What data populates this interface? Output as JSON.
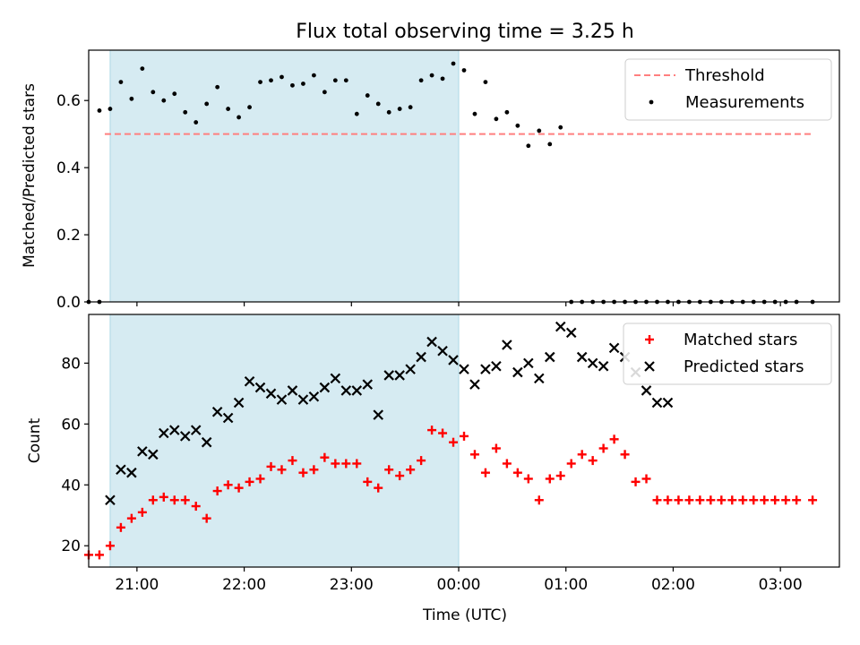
{
  "chart_data": [
    {
      "type": "scatter",
      "title": "Flux total observing time = 3.25 h",
      "xlabel": "",
      "ylabel": "Matched/Predicted stars",
      "xlim": [
        "20:33",
        "03:33"
      ],
      "ylim": [
        0,
        0.75
      ],
      "yticks": [
        "0.0",
        "0.2",
        "0.4",
        "0.6"
      ],
      "observing_window": [
        "20:45",
        "00:00"
      ],
      "threshold": {
        "name": "Threshold",
        "value": 0.5,
        "x_range": [
          "20:42",
          "03:18"
        ],
        "color": "#ff7f7f"
      },
      "series": [
        {
          "name": "Measurements",
          "color": "#000000",
          "x": [
            "20:39",
            "20:45",
            "20:51",
            "20:57",
            "21:03",
            "21:09",
            "21:15",
            "21:21",
            "21:27",
            "21:33",
            "21:39",
            "21:45",
            "21:51",
            "21:57",
            "22:03",
            "22:09",
            "22:15",
            "22:21",
            "22:27",
            "22:33",
            "22:39",
            "22:45",
            "22:51",
            "22:57",
            "23:03",
            "23:09",
            "23:15",
            "23:21",
            "23:27",
            "23:33",
            "23:39",
            "23:45",
            "23:51",
            "23:57",
            "00:03",
            "00:09",
            "00:15",
            "00:21",
            "00:27",
            "00:33",
            "00:39",
            "00:45",
            "00:51",
            "00:57"
          ],
          "y": [
            0.57,
            0.575,
            0.655,
            0.605,
            0.695,
            0.625,
            0.6,
            0.62,
            0.565,
            0.535,
            0.59,
            0.64,
            0.575,
            0.55,
            0.58,
            0.655,
            0.66,
            0.67,
            0.645,
            0.65,
            0.675,
            0.625,
            0.66,
            0.66,
            0.56,
            0.615,
            0.59,
            0.565,
            0.575,
            0.58,
            0.66,
            0.675,
            0.665,
            0.71,
            0.69,
            0.56,
            0.655,
            0.545,
            0.565,
            0.525,
            0.465,
            0.51,
            0.47,
            0.52
          ]
        },
        {
          "name": "",
          "color": "#000000",
          "x": [
            "20:33",
            "20:39",
            "01:03",
            "01:09",
            "01:15",
            "01:21",
            "01:27",
            "01:33",
            "01:39",
            "01:45",
            "01:51",
            "01:57",
            "02:03",
            "02:09",
            "02:15",
            "02:21",
            "02:27",
            "02:33",
            "02:39",
            "02:45",
            "02:51",
            "02:57",
            "03:03",
            "03:09",
            "03:18"
          ],
          "y": [
            0,
            0,
            0,
            0,
            0,
            0,
            0,
            0,
            0,
            0,
            0,
            0,
            0,
            0,
            0,
            0,
            0,
            0,
            0,
            0,
            0,
            0,
            0,
            0,
            0
          ]
        }
      ]
    },
    {
      "type": "scatter",
      "title": "",
      "xlabel": "Time (UTC)",
      "ylabel": "Count",
      "xlim": [
        "20:33",
        "03:33"
      ],
      "ylim": [
        13,
        96
      ],
      "yticks": [
        "20",
        "40",
        "60",
        "80"
      ],
      "xticks": [
        "21:00",
        "22:00",
        "23:00",
        "00:00",
        "01:00",
        "02:00",
        "03:00"
      ],
      "observing_window": [
        "20:45",
        "00:00"
      ],
      "series": [
        {
          "name": "Matched stars",
          "marker": "plus",
          "color": "#ff0000",
          "x": [
            "20:33",
            "20:39",
            "20:45",
            "20:51",
            "20:57",
            "21:03",
            "21:09",
            "21:15",
            "21:21",
            "21:27",
            "21:33",
            "21:39",
            "21:45",
            "21:51",
            "21:57",
            "22:03",
            "22:09",
            "22:15",
            "22:21",
            "22:27",
            "22:33",
            "22:39",
            "22:45",
            "22:51",
            "22:57",
            "23:03",
            "23:09",
            "23:15",
            "23:21",
            "23:27",
            "23:33",
            "23:39",
            "23:45",
            "23:51",
            "23:57",
            "00:03",
            "00:09",
            "00:15",
            "00:21",
            "00:27",
            "00:33",
            "00:39",
            "00:45",
            "00:51",
            "00:57",
            "01:03",
            "01:09",
            "01:15",
            "01:21",
            "01:27",
            "01:33",
            "01:39",
            "01:45",
            "01:51",
            "01:57",
            "02:03",
            "02:09",
            "02:15",
            "02:21",
            "02:27",
            "02:33",
            "02:39",
            "02:45",
            "02:51",
            "02:57",
            "03:03",
            "03:09",
            "03:18"
          ],
          "y": [
            17,
            17,
            20,
            26,
            29,
            31,
            35,
            36,
            35,
            35,
            33,
            29,
            38,
            40,
            39,
            41,
            42,
            46,
            45,
            48,
            44,
            45,
            49,
            47,
            47,
            47,
            41,
            39,
            45,
            43,
            45,
            48,
            58,
            57,
            54,
            56,
            50,
            44,
            52,
            47,
            44,
            42,
            35,
            42,
            43,
            47,
            50,
            48,
            52,
            55,
            50,
            41,
            42,
            35,
            35,
            35,
            35,
            35,
            35,
            35,
            35,
            35,
            35,
            35,
            35,
            35,
            35,
            35
          ]
        },
        {
          "name": "Predicted stars",
          "marker": "x",
          "color": "#000000",
          "x": [
            "20:45",
            "20:51",
            "20:57",
            "21:03",
            "21:09",
            "21:15",
            "21:21",
            "21:27",
            "21:33",
            "21:39",
            "21:45",
            "21:51",
            "21:57",
            "22:03",
            "22:09",
            "22:15",
            "22:21",
            "22:27",
            "22:33",
            "22:39",
            "22:45",
            "22:51",
            "22:57",
            "23:03",
            "23:09",
            "23:15",
            "23:21",
            "23:27",
            "23:33",
            "23:39",
            "23:45",
            "23:51",
            "23:57",
            "00:03",
            "00:09",
            "00:15",
            "00:21",
            "00:27",
            "00:33",
            "00:39",
            "00:45",
            "00:51",
            "00:57",
            "01:03",
            "01:09",
            "01:15",
            "01:21",
            "01:27",
            "01:33",
            "01:39",
            "01:45",
            "01:51",
            "01:57"
          ],
          "y": [
            35,
            45,
            44,
            51,
            50,
            57,
            58,
            56,
            58,
            54,
            64,
            62,
            67,
            74,
            72,
            70,
            68,
            71,
            68,
            69,
            72,
            75,
            71,
            71,
            73,
            63,
            76,
            76,
            78,
            82,
            87,
            84,
            81,
            78,
            73,
            78,
            79,
            86,
            77,
            80,
            75,
            82,
            92,
            90,
            82,
            80,
            79,
            85,
            82,
            77,
            71,
            67,
            67
          ]
        }
      ]
    }
  ]
}
